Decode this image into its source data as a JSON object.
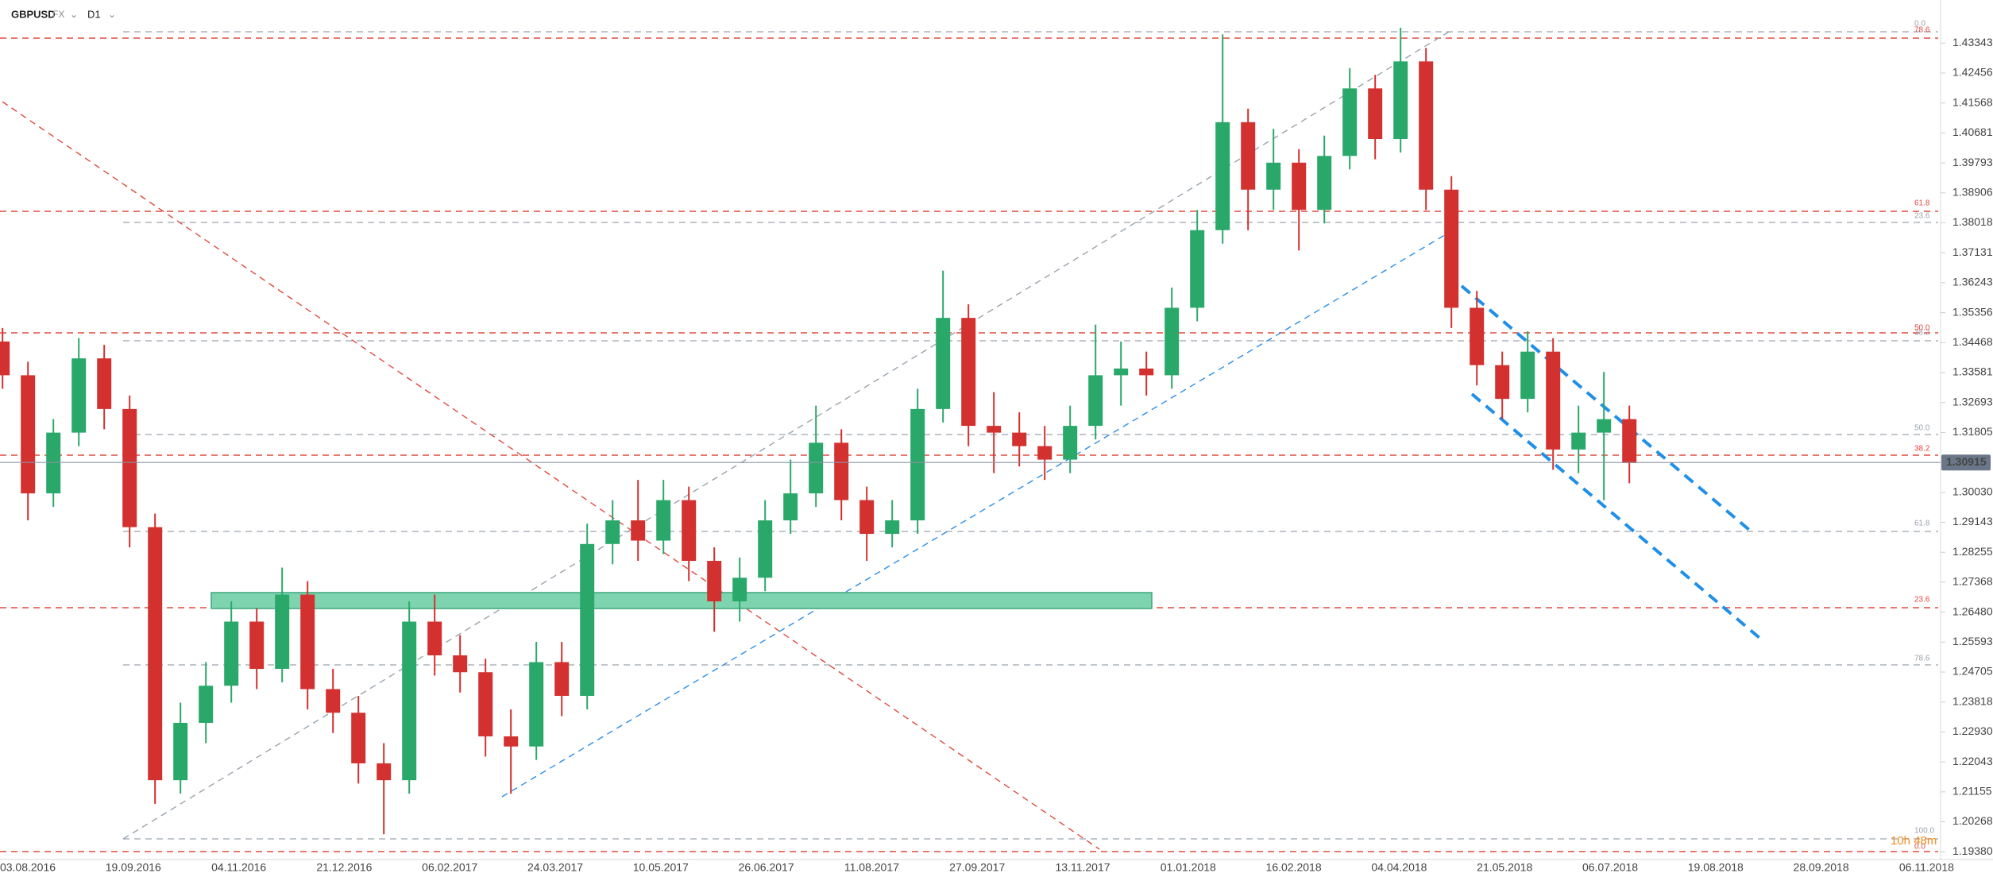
{
  "chart_data": {
    "type": "candlestick",
    "symbol": "GBPUSD",
    "market": "FX",
    "timeframe": "D1",
    "countdown": "10h 48m",
    "ylim": [
      1.1915,
      1.4462
    ],
    "yticks": [
      1.43343,
      1.42456,
      1.41568,
      1.40681,
      1.39793,
      1.38906,
      1.38018,
      1.37131,
      1.36243,
      1.35356,
      1.34468,
      1.33581,
      1.32693,
      1.31805,
      {
        "value": 1.3003,
        "label": "1.30030"
      },
      1.29143,
      1.28255,
      1.27368,
      {
        "value": 1.2648,
        "label": "1.26480"
      },
      1.25593,
      1.24705,
      1.23818,
      {
        "value": 1.2293,
        "label": "1.22930"
      },
      1.22043,
      1.21155,
      1.20268,
      {
        "value": 1.1938,
        "label": "1.19380"
      }
    ],
    "last_price": 1.30915,
    "x_labels": [
      "03.08.2016",
      "19.09.2016",
      "04.11.2016",
      "21.12.2016",
      "06.02.2017",
      "24.03.2017",
      "10.05.2017",
      "26.06.2017",
      "11.08.2017",
      "27.09.2017",
      "13.11.2017",
      "01.01.2018",
      "16.02.2018",
      "04.04.2018",
      "21.05.2018",
      "06.07.2018",
      "19.08.2018",
      "28.09.2018",
      "06.11.2018"
    ],
    "fib_labels_grey": [
      "0.0",
      "23.6",
      "38.2",
      "50.0",
      "61.8",
      "78.6",
      "100.0"
    ],
    "fib_labels_red": [
      "78.6",
      "61.8",
      "50.0",
      "38.2",
      "23.6",
      "0.0"
    ],
    "up_color": "#2aa86a",
    "down_color": "#d2312f",
    "open": [
      1.345,
      1.335,
      1.3,
      1.318,
      1.34,
      1.325,
      1.29,
      1.215,
      1.232,
      1.243,
      1.262,
      1.248,
      1.27,
      1.242,
      1.235,
      1.22,
      1.215,
      1.262,
      1.252,
      1.247,
      1.228,
      1.225,
      1.25,
      1.24,
      1.285,
      1.292,
      1.286,
      1.298,
      1.28,
      1.268,
      1.275,
      1.292,
      1.3,
      1.315,
      1.298,
      1.288,
      1.292,
      1.325,
      1.352,
      1.32,
      1.318,
      1.314,
      1.31,
      1.32,
      1.335,
      1.337,
      1.335,
      1.355,
      1.378,
      1.41,
      1.39,
      1.398,
      1.384,
      1.4,
      1.42,
      1.405,
      1.428,
      1.39,
      1.355,
      1.338,
      1.328,
      1.342,
      1.313,
      1.318,
      1.322
    ],
    "high": [
      1.349,
      1.339,
      1.322,
      1.346,
      1.344,
      1.329,
      1.294,
      1.238,
      1.25,
      1.268,
      1.266,
      1.278,
      1.274,
      1.248,
      1.24,
      1.226,
      1.268,
      1.27,
      1.258,
      1.251,
      1.236,
      1.256,
      1.256,
      1.291,
      1.298,
      1.304,
      1.304,
      1.302,
      1.284,
      1.281,
      1.298,
      1.31,
      1.326,
      1.319,
      1.302,
      1.298,
      1.331,
      1.366,
      1.356,
      1.33,
      1.324,
      1.32,
      1.326,
      1.35,
      1.345,
      1.342,
      1.361,
      1.384,
      1.436,
      1.414,
      1.408,
      1.402,
      1.406,
      1.426,
      1.424,
      1.438,
      1.432,
      1.394,
      1.36,
      1.342,
      1.348,
      1.346,
      1.326,
      1.336,
      1.326
    ],
    "low": [
      1.331,
      1.292,
      1.296,
      1.314,
      1.319,
      1.284,
      1.208,
      1.211,
      1.226,
      1.238,
      1.242,
      1.244,
      1.236,
      1.229,
      1.214,
      1.199,
      1.211,
      1.246,
      1.241,
      1.222,
      1.211,
      1.221,
      1.234,
      1.236,
      1.279,
      1.28,
      1.282,
      1.274,
      1.259,
      1.262,
      1.271,
      1.288,
      1.296,
      1.292,
      1.28,
      1.284,
      1.288,
      1.321,
      1.314,
      1.306,
      1.308,
      1.304,
      1.306,
      1.316,
      1.326,
      1.329,
      1.331,
      1.351,
      1.374,
      1.378,
      1.384,
      1.372,
      1.38,
      1.396,
      1.399,
      1.401,
      1.384,
      1.349,
      1.332,
      1.322,
      1.324,
      1.307,
      1.306,
      1.298,
      1.303
    ],
    "close": [
      1.335,
      1.3,
      1.318,
      1.34,
      1.325,
      1.29,
      1.215,
      1.232,
      1.243,
      1.262,
      1.248,
      1.27,
      1.242,
      1.235,
      1.22,
      1.215,
      1.262,
      1.252,
      1.247,
      1.228,
      1.225,
      1.25,
      1.24,
      1.285,
      1.292,
      1.286,
      1.298,
      1.28,
      1.268,
      1.275,
      1.292,
      1.3,
      1.315,
      1.298,
      1.288,
      1.292,
      1.325,
      1.352,
      1.32,
      1.318,
      1.314,
      1.31,
      1.32,
      1.335,
      1.337,
      1.335,
      1.355,
      1.378,
      1.41,
      1.39,
      1.398,
      1.384,
      1.4,
      1.42,
      1.405,
      1.428,
      1.39,
      1.355,
      1.338,
      1.328,
      1.342,
      1.313,
      1.318,
      1.322,
      1.309
    ]
  }
}
